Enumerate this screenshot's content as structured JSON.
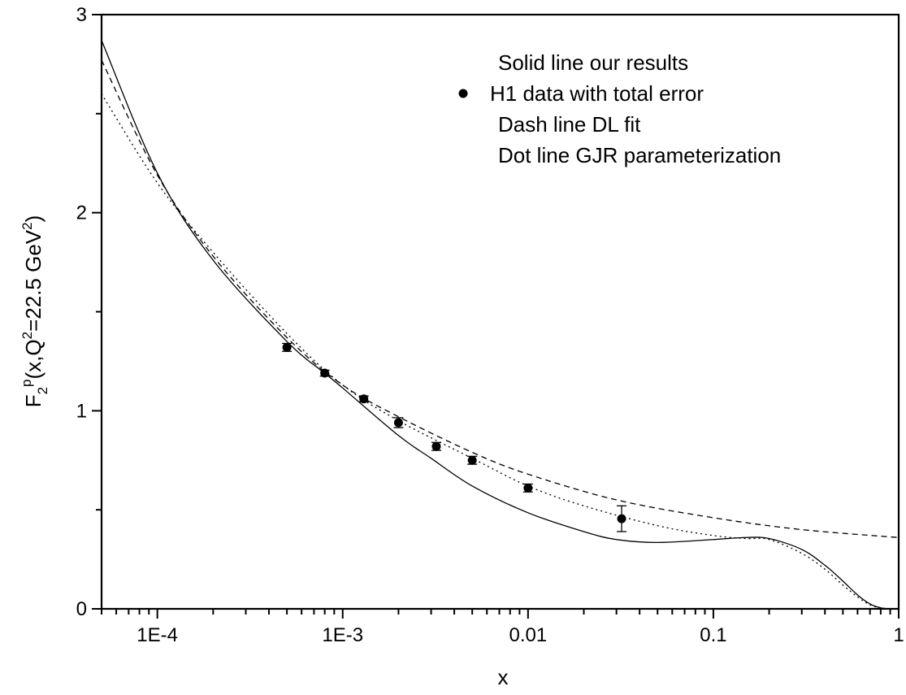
{
  "chart_data": {
    "type": "line",
    "x_scale": "log",
    "xlim": [
      5e-05,
      1
    ],
    "ylim": [
      0,
      3
    ],
    "xlabel": "x",
    "ylabel_parts": {
      "base": "F",
      "sub": "2",
      "sup": "p",
      "open": "(x,Q",
      "q_exp": "2",
      "mid": "=22.5 GeV",
      "gev_exp": "2",
      "close": ")"
    },
    "x_ticks": [
      {
        "value": 0.0001,
        "label": "1E-4"
      },
      {
        "value": 0.001,
        "label": "1E-3"
      },
      {
        "value": 0.01,
        "label": "0.01"
      },
      {
        "value": 0.1,
        "label": "0.1"
      },
      {
        "value": 1,
        "label": "1"
      }
    ],
    "y_ticks": [
      {
        "value": 0,
        "label": "0"
      },
      {
        "value": 1,
        "label": "1"
      },
      {
        "value": 2,
        "label": "2"
      },
      {
        "value": 3,
        "label": "3"
      }
    ],
    "legend": [
      {
        "text": "Solid line our results",
        "marker": "none"
      },
      {
        "text": "H1 data with total error",
        "marker": "dot"
      },
      {
        "text": "Dash line  DL fit",
        "marker": "none"
      },
      {
        "text": "Dot line GJR parameterization",
        "marker": "none"
      }
    ],
    "legend_position": "top-right",
    "series": [
      {
        "style": "solid",
        "x": [
          5e-05,
          0.0001,
          0.0002,
          0.0005,
          0.0008,
          0.001,
          0.002,
          0.003,
          0.005,
          0.01,
          0.02,
          0.03,
          0.05,
          0.1,
          0.15,
          0.2,
          0.3,
          0.4,
          0.5,
          0.6,
          0.7,
          0.8,
          0.9
        ],
        "y": [
          2.87,
          2.2,
          1.76,
          1.35,
          1.19,
          1.115,
          0.875,
          0.76,
          0.62,
          0.485,
          0.39,
          0.35,
          0.335,
          0.35,
          0.36,
          0.355,
          0.3,
          0.22,
          0.14,
          0.07,
          0.025,
          0.005,
          0.0
        ]
      },
      {
        "style": "dashed",
        "x": [
          5e-05,
          0.0001,
          0.0002,
          0.0005,
          0.001,
          0.002,
          0.005,
          0.01,
          0.03,
          0.1,
          0.3,
          1
        ],
        "y": [
          2.77,
          2.19,
          1.78,
          1.37,
          1.13,
          0.97,
          0.79,
          0.68,
          0.55,
          0.46,
          0.4,
          0.36
        ]
      },
      {
        "style": "dotted",
        "x": [
          5e-05,
          0.0001,
          0.0002,
          0.0005,
          0.001,
          0.002,
          0.005,
          0.01,
          0.02,
          0.05,
          0.1,
          0.15,
          0.2,
          0.3,
          0.4,
          0.5,
          0.6,
          0.7,
          0.8,
          0.9
        ],
        "y": [
          2.6,
          2.15,
          1.8,
          1.39,
          1.13,
          0.95,
          0.76,
          0.62,
          0.52,
          0.42,
          0.37,
          0.355,
          0.35,
          0.28,
          0.2,
          0.12,
          0.06,
          0.02,
          0.005,
          0.0
        ]
      }
    ],
    "data_points": [
      {
        "x": 0.0005,
        "y": 1.32,
        "err": 0.02
      },
      {
        "x": 0.0008,
        "y": 1.19,
        "err": 0.015
      },
      {
        "x": 0.0013,
        "y": 1.06,
        "err": 0.015
      },
      {
        "x": 0.002,
        "y": 0.94,
        "err": 0.025
      },
      {
        "x": 0.0032,
        "y": 0.82,
        "err": 0.02
      },
      {
        "x": 0.005,
        "y": 0.75,
        "err": 0.02
      },
      {
        "x": 0.01,
        "y": 0.61,
        "err": 0.02
      },
      {
        "x": 0.032,
        "y": 0.455,
        "err": 0.065
      }
    ]
  }
}
